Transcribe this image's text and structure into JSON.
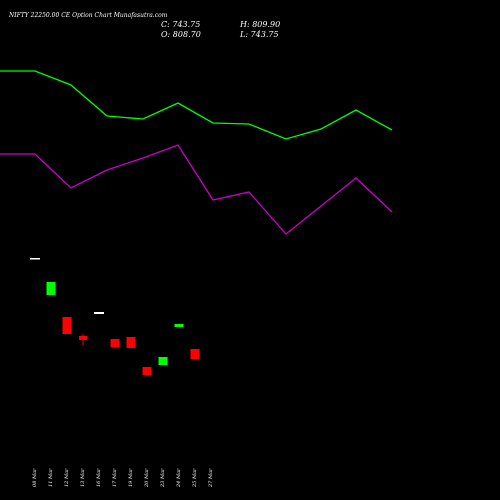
{
  "header": {
    "title": "NIFTY 22250.00  CE Option  Chart Munafasutra.com",
    "c": "C: 743.75",
    "h": "H: 809.90",
    "o": "O: 808.70",
    "l": "L: 743.75"
  },
  "chart_data": {
    "type": "candlestick",
    "title": "NIFTY 22250.00  CE Option  Chart Munafasutra.com",
    "categories": [
      "08 Mar",
      "11 Mar",
      "12 Mar",
      "13 Mar",
      "16 Mar",
      "17 Mar",
      "19 Mar",
      "20 Mar",
      "23 Mar",
      "24 Mar",
      "25 Mar",
      "27 Mar"
    ],
    "candles": [
      {
        "date": "08 Mar",
        "open": 1055,
        "high": 1055,
        "low": 1055,
        "close": 1055,
        "color": "#ffffff"
      },
      {
        "date": "11 Mar",
        "open": 940,
        "high": 948,
        "low": 938,
        "close": 946,
        "color": "#00ff00"
      },
      {
        "date": "12 Mar",
        "open": 915,
        "high": 915,
        "low": 868,
        "close": 870,
        "color": "#ff0000"
      },
      {
        "date": "13 Mar",
        "open": 875,
        "high": 878,
        "low": 852,
        "close": 870,
        "color": "#ff0000"
      },
      {
        "date": "16 Mar",
        "open": 909,
        "high": 909,
        "low": 909,
        "close": 909,
        "color": "#ffffff"
      },
      {
        "date": "17 Mar",
        "open": 868,
        "high": 868,
        "low": 858,
        "close": 858,
        "color": "#ff0000"
      },
      {
        "date": "19 Mar",
        "open": 868,
        "high": 868,
        "low": 855,
        "close": 856,
        "color": "#ff0000"
      },
      {
        "date": "20 Mar",
        "open": 820,
        "high": 820,
        "low": 810,
        "close": 810,
        "color": "#ff0000"
      },
      {
        "date": "23 Mar",
        "open": 815,
        "high": 830,
        "low": 815,
        "close": 827,
        "color": "#00ff00"
      },
      {
        "date": "24 Mar",
        "open": 887,
        "high": 890,
        "low": 885,
        "close": 890,
        "color": "#00ff00"
      },
      {
        "date": "25 Mar",
        "open": 808.7,
        "high": 809.9,
        "low": 743.75,
        "close": 743.75,
        "color": "#ff0000"
      },
      {
        "date": "27 Mar",
        "open": 842,
        "high": 844,
        "low": 828,
        "close": 829,
        "color": "#ff0000"
      }
    ],
    "candle_x": [
      "08 Mar",
      "11 Mar",
      "12 Mar",
      "13 Mar",
      "16 Mar",
      "17 Mar",
      "19 Mar",
      "20 Mar",
      "23 Mar",
      "24 Mar",
      "25 Mar",
      "27 Mar"
    ],
    "series": [
      {
        "color": "#00ff00",
        "x": [
          "08 Mar",
          "11 Mar",
          "13 Mar",
          "16 Mar",
          "17 Mar",
          "20 Mar",
          "23 Mar",
          "24 Mar",
          "25 Mar",
          "27 Mar"
        ],
        "values": [
          1240,
          1240,
          1225,
          1190,
          1187,
          1210,
          1183,
          1182,
          1155,
          1172
        ]
      },
      {
        "color": "#cc00cc",
        "x": [
          "08 Mar",
          "11 Mar",
          "13 Mar",
          "16 Mar",
          "17 Mar",
          "20 Mar",
          "23 Mar",
          "24 Mar",
          "25 Mar",
          "27 Mar"
        ],
        "values": [
          1150,
          1150,
          1110,
          1130,
          1148,
          1163,
          1100,
          1106,
          1043,
          1088
        ]
      }
    ]
  },
  "colors": {
    "background": "#000000",
    "up": "#00ff00",
    "down": "#ff0000",
    "neutral": "#ffffff",
    "ma_fast": "#00ff00",
    "ma_slow": "#cc00cc"
  }
}
